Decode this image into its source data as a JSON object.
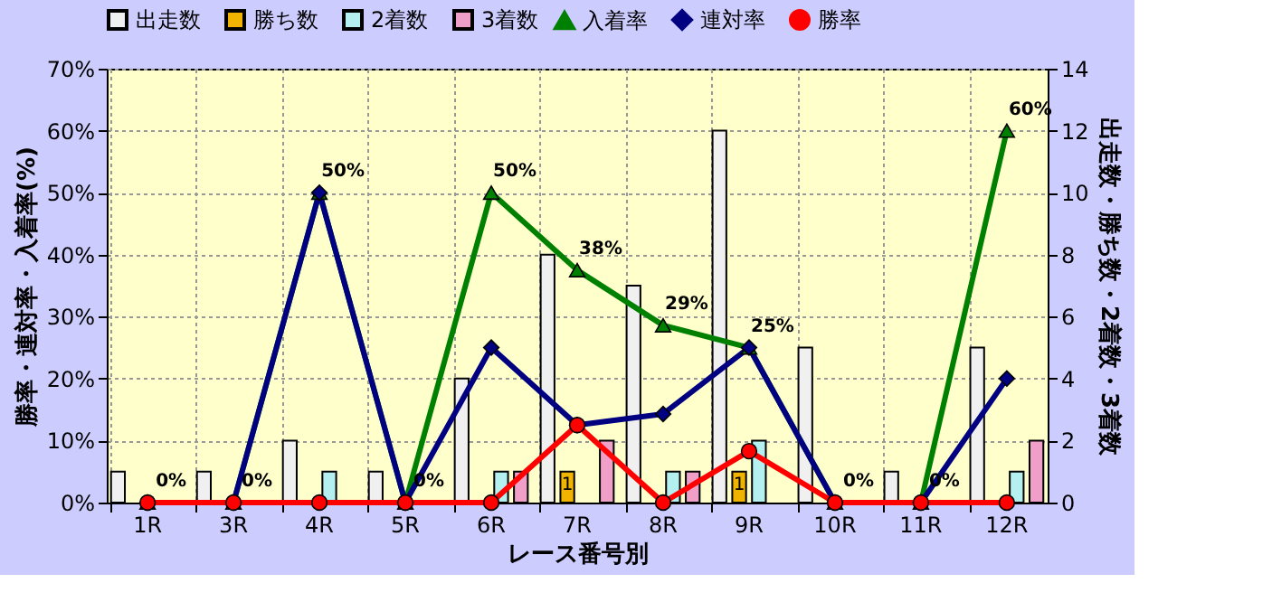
{
  "chart_data": {
    "type": "bar",
    "xlabel": "レース番号別",
    "ylabel": "勝率・連対率・入着率(%)",
    "y2label": "出走数・勝ち数・2着数・3着数",
    "categories": [
      "1R",
      "3R",
      "4R",
      "5R",
      "6R",
      "7R",
      "8R",
      "9R",
      "10R",
      "11R",
      "12R"
    ],
    "series": [
      {
        "name": "出走数",
        "type": "bar",
        "axis": "y2",
        "color": "#f0f0f0",
        "values": [
          1,
          1,
          2,
          1,
          4,
          8,
          7,
          12,
          5,
          1,
          5
        ]
      },
      {
        "name": "勝ち数",
        "type": "bar",
        "axis": "y2",
        "color": "#f0b400",
        "values": [
          0,
          0,
          0,
          0,
          0,
          1,
          0,
          1,
          0,
          0,
          0
        ],
        "value_labels": [
          null,
          null,
          null,
          null,
          null,
          "1",
          null,
          "1",
          null,
          null,
          null
        ]
      },
      {
        "name": "2着数",
        "type": "bar",
        "axis": "y2",
        "color": "#b4f0f0",
        "values": [
          0,
          0,
          1,
          0,
          1,
          0,
          1,
          2,
          0,
          0,
          1
        ]
      },
      {
        "name": "3着数",
        "type": "bar",
        "axis": "y2",
        "color": "#f0a0c8",
        "values": [
          0,
          0,
          0,
          0,
          1,
          2,
          1,
          0,
          0,
          0,
          2
        ]
      },
      {
        "name": "入着率",
        "type": "line",
        "color": "#008000",
        "marker": "triangle",
        "values": [
          0,
          0,
          50,
          0,
          50,
          37.5,
          28.6,
          25,
          0,
          0,
          60
        ],
        "value_labels": [
          "0%",
          "0%",
          "50%",
          "0%",
          "50%",
          "38%",
          "29%",
          "25%",
          "0%",
          "0%",
          "60%"
        ]
      },
      {
        "name": "連対率",
        "type": "line",
        "color": "#000080",
        "marker": "diamond",
        "values": [
          0,
          0,
          50,
          0,
          25,
          12.5,
          14.3,
          25,
          0,
          0,
          20
        ]
      },
      {
        "name": "勝率",
        "type": "line",
        "color": "#ff0000",
        "marker": "circle",
        "values": [
          0,
          0,
          0,
          0,
          0,
          12.5,
          0,
          8.3,
          0,
          0,
          0
        ]
      }
    ],
    "ylim": [
      0,
      70
    ],
    "yticks": [
      {
        "value": 0,
        "label": "0%"
      },
      {
        "value": 10,
        "label": "10%"
      },
      {
        "value": 20,
        "label": "20%"
      },
      {
        "value": 30,
        "label": "30%"
      },
      {
        "value": 40,
        "label": "40%"
      },
      {
        "value": 50,
        "label": "50%"
      },
      {
        "value": 60,
        "label": "60%"
      },
      {
        "value": 70,
        "label": "70%"
      }
    ],
    "y2lim": [
      0,
      14
    ],
    "y2ticks": [
      0,
      2,
      4,
      6,
      8,
      10,
      12,
      14
    ],
    "grid": true,
    "legend": "top",
    "line_style": "solid"
  }
}
